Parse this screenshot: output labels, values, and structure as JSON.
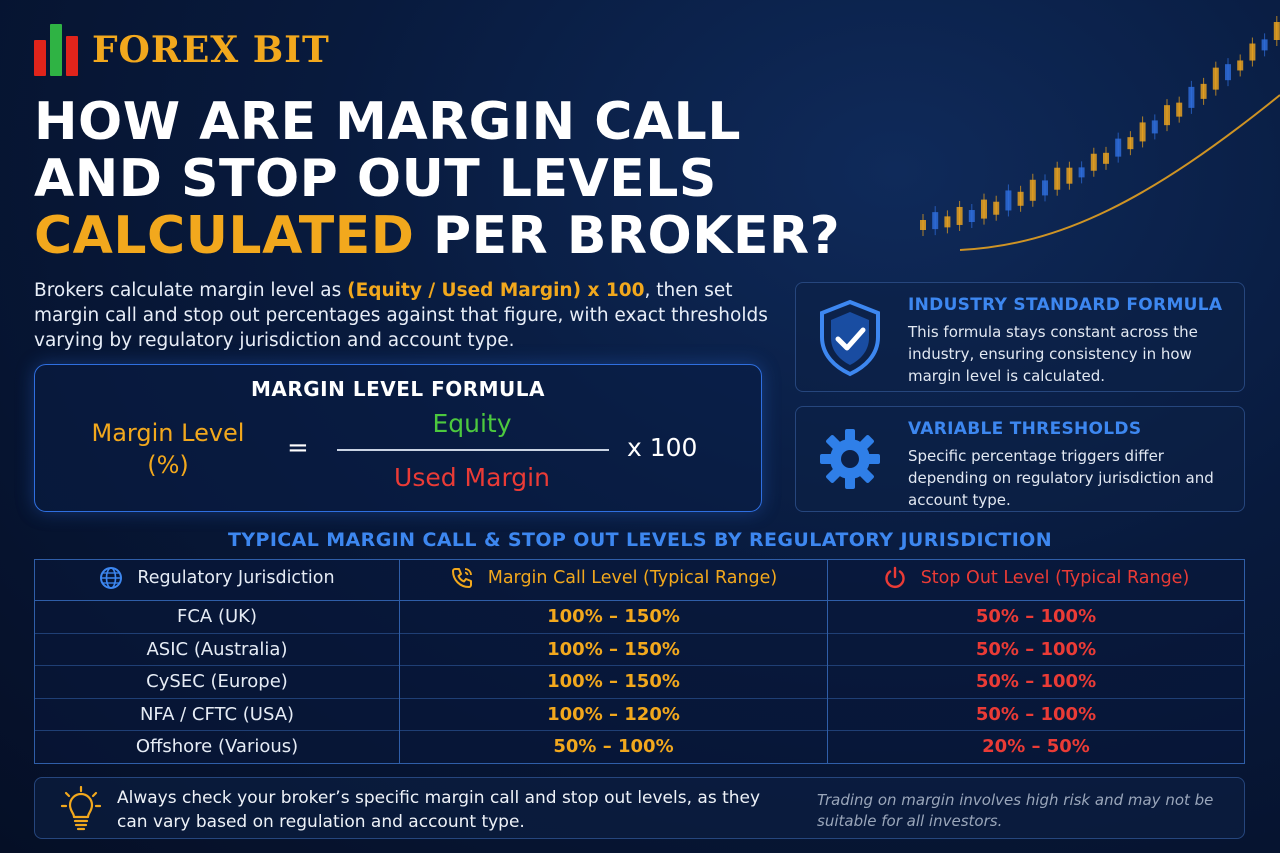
{
  "brand": {
    "name": "FOREX BIT",
    "bar_colors": [
      "#e0241b",
      "#2fb344",
      "#e0241b"
    ]
  },
  "title": {
    "line1": "HOW ARE MARGIN CALL",
    "line2": "AND STOP OUT LEVELS",
    "line3_highlight": "CALCULATED",
    "line3_rest": " PER BROKER?"
  },
  "intro": {
    "before": "Brokers calculate margin level as ",
    "highlight": "(Equity / Used Margin) x 100",
    "after": ", then set margin call and stop out percentages against that figure, with exact thresholds varying by regulatory jurisdiction and account type."
  },
  "formula": {
    "title": "MARGIN LEVEL FORMULA",
    "lhs_line1": "Margin Level",
    "lhs_line2": "(%)",
    "equals": "=",
    "numerator": "Equity",
    "denominator": "Used Margin",
    "multiplier": "x  100"
  },
  "cards": [
    {
      "icon": "shield-check-icon",
      "title": "INDUSTRY STANDARD FORMULA",
      "body": "This formula stays constant across the industry, ensuring consistency in how margin level is calculated."
    },
    {
      "icon": "gear-icon",
      "title": "VARIABLE THRESHOLDS",
      "body": "Specific percentage triggers differ depending on regulatory jurisdiction and account type."
    }
  ],
  "table": {
    "title": "TYPICAL MARGIN CALL & STOP OUT LEVELS BY REGULATORY JURISDICTION",
    "headers": {
      "jurisdiction": "Regulatory Jurisdiction",
      "margin_call": "Margin Call Level (Typical Range)",
      "stop_out": "Stop Out Level (Typical Range)"
    },
    "header_icons": [
      "globe-icon",
      "phone-alert-icon",
      "power-icon"
    ],
    "rows": [
      {
        "jurisdiction": "FCA (UK)",
        "margin_call": "100% – 150%",
        "stop_out": "50% – 100%"
      },
      {
        "jurisdiction": "ASIC (Australia)",
        "margin_call": "100% – 150%",
        "stop_out": "50% – 100%"
      },
      {
        "jurisdiction": "CySEC (Europe)",
        "margin_call": "100% – 150%",
        "stop_out": "50% – 100%"
      },
      {
        "jurisdiction": "NFA / CFTC (USA)",
        "margin_call": "100% – 120%",
        "stop_out": "50% – 100%"
      },
      {
        "jurisdiction": "Offshore (Various)",
        "margin_call": "50% – 100%",
        "stop_out": "20% – 50%"
      }
    ]
  },
  "footer": {
    "icon": "lightbulb-icon",
    "tip": "Always check your broker’s specific margin call and stop out levels, as they can vary based on regulation and account type.",
    "disclaimer": "Trading on margin involves high risk and may not be suitable for all investors."
  },
  "colors": {
    "gold": "#f2a81d",
    "blue": "#3d87f0",
    "green": "#4cc93e",
    "red": "#ea3b36"
  }
}
